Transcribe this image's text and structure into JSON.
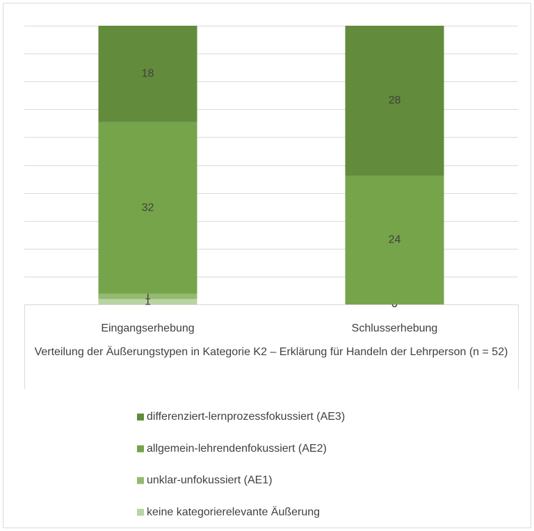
{
  "chart_data": {
    "type": "stacked_bar",
    "title": "Verteilung der Äußerungstypen in Kategorie K2 – Erklärung für Handeln der Lehrperson (n = 52)",
    "categories": [
      "Eingangserhebung",
      "Schlusserhebung"
    ],
    "series": [
      {
        "name": "keine kategorierelevante Äußerung",
        "color": "#b9d4a2",
        "values": [
          1,
          0
        ]
      },
      {
        "name": "unklar-unfokussiert (AE1)",
        "color": "#94ba70",
        "values": [
          1,
          0
        ]
      },
      {
        "name": "allgemein-lehrendenfokussiert (AE2)",
        "color": "#75a44b",
        "values": [
          32,
          24
        ]
      },
      {
        "name": "differenziert-lernprozessfokussiert (AE3)",
        "color": "#628b3b",
        "values": [
          18,
          28
        ]
      }
    ],
    "ylim": [
      0,
      52
    ],
    "yticks": [
      0,
      5.2,
      10.4,
      15.6,
      20.8,
      26,
      31.2,
      36.4,
      41.6,
      46.8,
      52
    ],
    "grid": true
  }
}
